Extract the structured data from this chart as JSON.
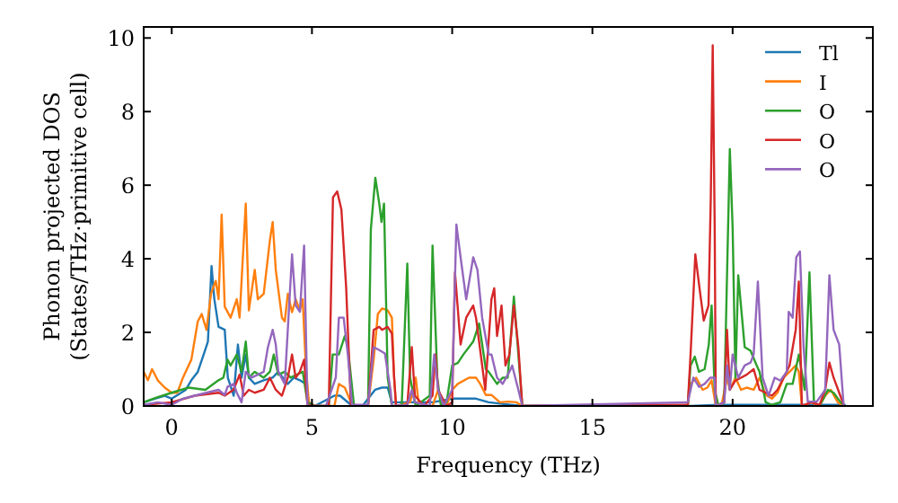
{
  "chart_data": {
    "type": "line",
    "xlabel": "Frequency (THz)",
    "ylabel": "Phonon projected DOS\n(States/THz·primitive cell)",
    "xlim": [
      -1,
      25
    ],
    "ylim": [
      0,
      10.3
    ],
    "xticks": [
      0,
      5,
      10,
      15,
      20
    ],
    "yticks": [
      0,
      2,
      4,
      6,
      8,
      10
    ],
    "legend": "top right",
    "line_style": "solid",
    "series": [
      {
        "name": "Tl",
        "color": "#1f77b4",
        "x": [
          -1,
          -0.6,
          -0.25,
          0,
          0.17,
          0.5,
          0.7,
          0.93,
          1.14,
          1.29,
          1.42,
          1.52,
          1.67,
          1.89,
          2.0,
          2.21,
          2.36,
          2.49,
          2.64,
          2.75,
          2.96,
          3.28,
          3.6,
          3.8,
          4.14,
          4.35,
          4.57,
          4.78,
          4.89,
          5.1,
          5.8,
          6.0,
          6.39,
          6.8,
          7.25,
          7.5,
          7.7,
          7.85,
          8.6,
          9.3,
          10.0,
          10.2,
          10.85,
          11.3,
          12.1,
          12.5,
          18.5,
          19.5,
          24
        ],
        "values": [
          0.1,
          0.2,
          0.28,
          0.2,
          0.28,
          0.44,
          0.7,
          0.93,
          1.4,
          1.75,
          3.8,
          2.9,
          2.15,
          2.07,
          0.77,
          0.28,
          1.67,
          0.77,
          1.4,
          0.77,
          0.6,
          0.7,
          0.77,
          0.93,
          0.6,
          0.77,
          0.7,
          0.6,
          0.1,
          0,
          0.28,
          0.28,
          0.03,
          0,
          0.44,
          0.5,
          0.5,
          0.1,
          0.1,
          0.1,
          0.2,
          0.2,
          0.2,
          0.1,
          0.03,
          0,
          0,
          0.03,
          0.03
        ]
      },
      {
        "name": "I",
        "color": "#ff7f0e",
        "x": [
          -1,
          -0.85,
          -0.7,
          -0.5,
          -0.25,
          0,
          0.2,
          0.4,
          0.7,
          0.93,
          1.07,
          1.24,
          1.4,
          1.57,
          1.67,
          1.78,
          1.89,
          2.1,
          2.32,
          2.42,
          2.64,
          2.75,
          2.96,
          3.07,
          3.28,
          3.5,
          3.6,
          3.71,
          3.93,
          4.03,
          4.14,
          4.29,
          4.42,
          4.57,
          4.67,
          4.78,
          4.89,
          5.1,
          5.8,
          5.96,
          6.17,
          6.39,
          6.6,
          7.0,
          7.2,
          7.35,
          7.5,
          7.7,
          7.85,
          7.93,
          8.0,
          8.5,
          8.7,
          8.8,
          9.0,
          9.3,
          9.5,
          9.6,
          9.8,
          10.0,
          10.2,
          10.6,
          10.85,
          11.0,
          11.2,
          11.4,
          11.7,
          12.0,
          12.3,
          12.5,
          18.4,
          18.5,
          18.7,
          18.93,
          19.1,
          19.25,
          19.4,
          19.6,
          19.8,
          19.9,
          20.1,
          20.3,
          20.5,
          20.75,
          20.96,
          21.18,
          21.4,
          21.6,
          21.82,
          22.03,
          22.25,
          22.36,
          22.47,
          22.8,
          23.1,
          23.3,
          23.5,
          23.75,
          23.96
        ],
        "values": [
          0.93,
          0.7,
          1.0,
          0.7,
          0.5,
          0.36,
          0.36,
          0.77,
          1.26,
          2.3,
          2.5,
          2.07,
          3.05,
          3.4,
          2.9,
          5.2,
          2.7,
          2.4,
          2.9,
          2.4,
          5.5,
          2.6,
          3.7,
          2.9,
          3.05,
          4.5,
          5.0,
          3.7,
          2.4,
          2.3,
          3.05,
          2.55,
          2.9,
          2.6,
          2.9,
          1.1,
          0.1,
          0,
          0,
          0.6,
          0.5,
          0.1,
          0,
          0,
          1.26,
          2.5,
          2.65,
          2.6,
          2.4,
          0.8,
          0,
          0.1,
          0.77,
          0.1,
          0,
          0,
          0.44,
          0.1,
          0,
          0.44,
          0.6,
          0.77,
          0.77,
          0.6,
          0.3,
          0.3,
          0.1,
          0.12,
          0.1,
          0,
          0,
          0.6,
          0.77,
          0.44,
          0.5,
          0.7,
          0,
          0,
          0.77,
          0.44,
          0.77,
          0.44,
          0.5,
          0.44,
          0.77,
          0.3,
          0.2,
          0.36,
          0.77,
          0.93,
          1.1,
          0.93,
          0,
          0.1,
          0,
          0.28,
          0.44,
          0.1,
          0
        ]
      },
      {
        "name": "O",
        "color": "#2ca02c",
        "x": [
          -1,
          -0.5,
          0,
          0.6,
          1.2,
          1.67,
          1.84,
          1.99,
          2.1,
          2.32,
          2.49,
          2.64,
          2.75,
          2.96,
          3.28,
          3.5,
          3.64,
          3.8,
          4.03,
          4.24,
          4.46,
          4.67,
          4.84,
          5.1,
          5.6,
          5.74,
          5.96,
          6.17,
          6.28,
          6.5,
          7.0,
          7.1,
          7.26,
          7.4,
          7.48,
          7.57,
          7.7,
          7.85,
          8.2,
          8.4,
          8.5,
          8.7,
          9.2,
          9.3,
          9.47,
          9.6,
          9.8,
          10.0,
          10.2,
          10.4,
          10.75,
          10.96,
          11.2,
          11.3,
          11.6,
          11.8,
          11.98,
          12.2,
          12.36,
          12.5,
          18.4,
          18.5,
          18.65,
          18.8,
          19.0,
          19.15,
          19.25,
          19.36,
          19.5,
          19.7,
          19.9,
          20.0,
          20.1,
          20.2,
          20.43,
          20.64,
          20.86,
          20.96,
          21.18,
          21.4,
          21.7,
          21.93,
          22.14,
          22.36,
          22.57,
          22.74,
          22.9,
          23.1,
          23.4,
          23.6,
          23.85,
          24
        ],
        "values": [
          0.1,
          0.24,
          0.36,
          0.5,
          0.44,
          0.7,
          0.77,
          1.26,
          1.1,
          1.4,
          0.93,
          1.75,
          0.77,
          0.93,
          0.77,
          0.93,
          1.4,
          0.85,
          0.93,
          0.77,
          0.85,
          0.93,
          0.1,
          0,
          0,
          1.4,
          1.4,
          1.9,
          1.6,
          0,
          0,
          4.8,
          6.2,
          5.5,
          5.0,
          5.5,
          0.77,
          0,
          0,
          3.87,
          0.77,
          0,
          0.28,
          4.36,
          0.77,
          0,
          0.1,
          1.1,
          1.17,
          1.4,
          1.75,
          2.24,
          1.0,
          0.93,
          0.6,
          0.77,
          0.77,
          2.97,
          1.4,
          0,
          0,
          1.1,
          1.34,
          0.93,
          1.0,
          1.67,
          2.73,
          0.44,
          0,
          0.1,
          6.98,
          4.85,
          0.77,
          3.55,
          1.6,
          1.5,
          1.1,
          0.93,
          0.1,
          0.03,
          0.1,
          0.6,
          0.6,
          1.4,
          0.44,
          3.63,
          0.1,
          0,
          0.44,
          0.36,
          0.1,
          0
        ]
      },
      {
        "name": "O",
        "color": "#d62728",
        "x": [
          -1,
          0,
          0.82,
          1.67,
          1.89,
          2.2,
          2.42,
          2.57,
          2.75,
          2.96,
          3.28,
          3.5,
          3.71,
          3.93,
          4.14,
          4.29,
          4.42,
          4.57,
          4.72,
          4.84,
          5.1,
          5.6,
          5.75,
          5.9,
          6.05,
          6.22,
          6.39,
          7.0,
          7.2,
          7.4,
          7.5,
          7.7,
          7.85,
          7.93,
          8.0,
          8.4,
          8.56,
          8.67,
          9.0,
          9.3,
          9.4,
          9.5,
          9.8,
          10.0,
          10.1,
          10.3,
          10.5,
          10.75,
          10.85,
          11.18,
          11.4,
          11.5,
          11.6,
          11.76,
          11.9,
          12.04,
          12.2,
          12.36,
          12.5,
          18.4,
          18.5,
          18.67,
          18.82,
          18.97,
          19.14,
          19.22,
          19.29,
          19.36,
          19.4,
          19.7,
          19.8,
          19.9,
          20.1,
          20.3,
          20.5,
          20.75,
          20.96,
          21.18,
          21.4,
          21.6,
          21.82,
          22.03,
          22.25,
          22.36,
          22.47,
          22.8,
          23.1,
          23.3,
          23.45,
          23.6,
          23.8,
          23.96
        ],
        "values": [
          0.03,
          0.1,
          0.28,
          0.36,
          0.28,
          0.44,
          0.85,
          0.28,
          0.44,
          0.36,
          0.44,
          0.77,
          0.44,
          0.28,
          0.77,
          1.4,
          0.77,
          0.93,
          1.26,
          0.03,
          0,
          0,
          5.67,
          5.83,
          5.34,
          3.22,
          0,
          0,
          2.07,
          2.15,
          2.07,
          2.15,
          1.97,
          0.77,
          0,
          0.03,
          1.6,
          0.28,
          0,
          0.28,
          1.4,
          0.44,
          0,
          0.1,
          3.63,
          1.67,
          2.4,
          2.73,
          2.4,
          0.44,
          2.9,
          3.2,
          1.9,
          2.73,
          1.1,
          1.4,
          2.73,
          1.6,
          0,
          0.03,
          1.4,
          4.12,
          3.2,
          2.32,
          2.73,
          5.6,
          9.8,
          4.9,
          0,
          0.1,
          2.07,
          0.44,
          0.69,
          0.77,
          0.85,
          1.0,
          0.44,
          0.36,
          0.28,
          0.44,
          0.77,
          1.1,
          2.07,
          3.38,
          0,
          0.1,
          0.03,
          0.44,
          1.18,
          0.77,
          0.36,
          0.03
        ]
      },
      {
        "name": "O",
        "color": "#9467bd",
        "x": [
          -1,
          -0.5,
          0,
          0.4,
          0.82,
          1.24,
          1.67,
          1.89,
          1.99,
          2.21,
          2.32,
          2.49,
          2.64,
          2.85,
          3.07,
          3.28,
          3.43,
          3.6,
          3.71,
          3.8,
          4.03,
          4.2,
          4.29,
          4.42,
          4.57,
          4.72,
          4.84,
          5.5,
          5.85,
          5.96,
          6.13,
          6.28,
          6.43,
          7.0,
          7.2,
          7.4,
          7.6,
          7.8,
          7.85,
          8.4,
          8.56,
          8.67,
          9.2,
          9.36,
          9.5,
          9.7,
          10.0,
          10.15,
          10.3,
          10.5,
          10.75,
          10.9,
          11.07,
          11.3,
          11.4,
          11.6,
          11.8,
          12.04,
          12.14,
          12.36,
          12.5,
          18.4,
          18.6,
          18.8,
          19.0,
          19.2,
          19.36,
          19.4,
          19.7,
          19.8,
          19.9,
          20.0,
          20.2,
          20.43,
          20.64,
          20.75,
          20.9,
          21.07,
          21.28,
          21.5,
          21.7,
          21.93,
          22.0,
          22.14,
          22.27,
          22.4,
          22.53,
          22.68,
          23.0,
          23.3,
          23.45,
          23.6,
          23.8,
          23.96
        ],
        "values": [
          0.03,
          0.1,
          0.03,
          0.2,
          0.28,
          0.36,
          0.44,
          0.3,
          0.52,
          0.6,
          0.36,
          0.1,
          0.93,
          0.77,
          0.85,
          0.93,
          1.6,
          2.07,
          1.67,
          0.93,
          0.6,
          2.9,
          4.12,
          2.73,
          2.56,
          4.36,
          0,
          0,
          0.77,
          2.4,
          2.4,
          1.4,
          0.03,
          0.03,
          1.6,
          1.52,
          1.43,
          0.44,
          0,
          0.03,
          0.44,
          0.1,
          0,
          1.4,
          0.44,
          0,
          0.44,
          4.93,
          4.04,
          2.9,
          4.04,
          3.7,
          2.4,
          1.4,
          1.4,
          0.77,
          0.6,
          0.93,
          1.1,
          0.44,
          0,
          0.1,
          0.77,
          0.52,
          0.6,
          0.77,
          0.77,
          0,
          0.1,
          1.1,
          0.44,
          1.4,
          0.77,
          1.1,
          1.18,
          1.4,
          3.38,
          0.77,
          0.28,
          0.77,
          0.69,
          0.93,
          2.56,
          2.4,
          4.04,
          4.2,
          1.6,
          0.12,
          0.12,
          0.44,
          3.55,
          2.07,
          1.67,
          0
        ]
      }
    ]
  }
}
